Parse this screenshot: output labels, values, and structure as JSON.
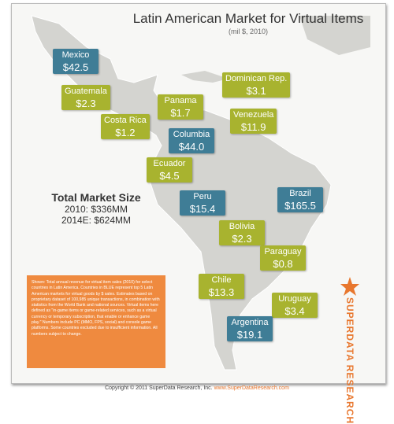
{
  "header": {
    "title": "Latin American Market for Virtual Items",
    "subtitle": "(mil $, 2010)"
  },
  "countries": [
    {
      "name": "Mexico",
      "value": "$42.5",
      "color": "#3f7d96"
    },
    {
      "name": "Guatemala",
      "value": "$2.3",
      "color": "#a8b32f"
    },
    {
      "name": "Panama",
      "value": "$1.7",
      "color": "#a8b32f"
    },
    {
      "name": "Costa Rica",
      "value": "$1.2",
      "color": "#a8b32f"
    },
    {
      "name": "Dominican Rep.",
      "value": "$3.1",
      "color": "#a8b32f"
    },
    {
      "name": "Venezuela",
      "value": "$11.9",
      "color": "#a8b32f"
    },
    {
      "name": "Columbia",
      "value": "$44.0",
      "color": "#3f7d96"
    },
    {
      "name": "Ecuador",
      "value": "$4.5",
      "color": "#a8b32f"
    },
    {
      "name": "Peru",
      "value": "$15.4",
      "color": "#3f7d96"
    },
    {
      "name": "Brazil",
      "value": "$165.5",
      "color": "#3f7d96"
    },
    {
      "name": "Bolivia",
      "value": "$2.3",
      "color": "#a8b32f"
    },
    {
      "name": "Paraguay",
      "value": "$0.8",
      "color": "#a8b32f"
    },
    {
      "name": "Chile",
      "value": "$13.3",
      "color": "#a8b32f"
    },
    {
      "name": "Uruguay",
      "value": "$3.4",
      "color": "#a8b32f"
    },
    {
      "name": "Argentina",
      "value": "$19.1",
      "color": "#3f7d96"
    }
  ],
  "total": {
    "title": "Total Market Size",
    "lines": [
      "2010: $336MM",
      "2014E: $624MM"
    ]
  },
  "note": "Shown: Total annual revenue for virtual item sales (2010) for select countries in Latin America. Countries in BLUE represent top 5 Latin American markets for virtual goods by $ sales. Estimates based on proprietary dataset of 100,985 unique transactions, in combination with statistics from the World Bank and national sources. Virtual items here defined as \"in-game items or game-related services, such as a virtual currency or temporary subscription, that enable or enhance game play.\" Numbers include PC (MMO, FPS, social) and console game platforms. Some countries excluded due to insufficient information. All numbers subject to change.",
  "brand": "SUPERDATA RESEARCH",
  "footer": {
    "copyright": "Copyright © 2011 SuperData Research, Inc.",
    "url": "www.SuperDataResearch.com"
  }
}
